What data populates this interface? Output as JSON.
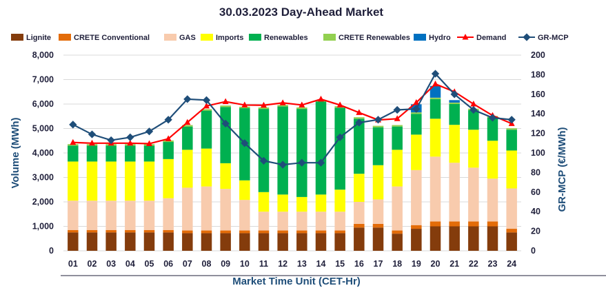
{
  "chart_data": {
    "type": "bar",
    "title": "30.03.2023  Day-Ahead Market",
    "xlabel": "Market Time Unit (CET-Hr)",
    "ylabel": "Volume (MWh)",
    "y2label": "GR-MCP (€/MWh)",
    "ylim": [
      0,
      8000
    ],
    "y2lim": [
      0,
      200
    ],
    "yticks": [
      "0",
      "1,000",
      "2,000",
      "3,000",
      "4,000",
      "5,000",
      "6,000",
      "7,000",
      "8,000"
    ],
    "y2ticks": [
      "0",
      "20",
      "40",
      "60",
      "80",
      "100",
      "120",
      "140",
      "160",
      "180",
      "200"
    ],
    "categories": [
      "01",
      "02",
      "03",
      "04",
      "05",
      "06",
      "07",
      "08",
      "09",
      "10",
      "11",
      "12",
      "13",
      "14",
      "15",
      "16",
      "17",
      "18",
      "19",
      "20",
      "21",
      "22",
      "23",
      "24"
    ],
    "series": [
      {
        "name": "Lignite",
        "kind": "bar",
        "color": "#843c0c",
        "values": [
          750,
          750,
          750,
          750,
          750,
          750,
          720,
          720,
          720,
          720,
          720,
          720,
          720,
          720,
          720,
          950,
          950,
          700,
          900,
          1000,
          1000,
          1000,
          1000,
          750
        ]
      },
      {
        "name": "CRETE Conventional",
        "kind": "bar",
        "color": "#e36c09",
        "values": [
          100,
          100,
          100,
          100,
          100,
          100,
          110,
          110,
          110,
          110,
          110,
          110,
          110,
          110,
          110,
          150,
          150,
          130,
          150,
          200,
          200,
          200,
          200,
          150
        ]
      },
      {
        "name": "GAS",
        "kind": "bar",
        "color": "#f8cbad",
        "values": [
          1200,
          1200,
          1200,
          1200,
          1200,
          1300,
          1750,
          1800,
          1700,
          1250,
          770,
          770,
          770,
          770,
          770,
          900,
          1000,
          1800,
          2250,
          2650,
          2400,
          2200,
          1750,
          1650
        ]
      },
      {
        "name": "Imports",
        "kind": "bar",
        "color": "#ffff00",
        "values": [
          1600,
          1600,
          1600,
          1600,
          1600,
          1600,
          1550,
          1550,
          1050,
          800,
          800,
          700,
          600,
          700,
          900,
          1150,
          1400,
          1500,
          1450,
          1550,
          1550,
          1550,
          1550,
          1550
        ]
      },
      {
        "name": "Renewables",
        "kind": "bar",
        "color": "#00b050",
        "values": [
          650,
          650,
          650,
          650,
          650,
          700,
          950,
          1550,
          2300,
          2950,
          3400,
          3600,
          3600,
          3800,
          3350,
          2250,
          1550,
          950,
          850,
          800,
          850,
          800,
          950,
          850
        ]
      },
      {
        "name": "CRETE Renewables",
        "kind": "bar",
        "color": "#92d050",
        "values": [
          60,
          60,
          60,
          60,
          60,
          60,
          60,
          60,
          60,
          60,
          60,
          60,
          60,
          60,
          60,
          60,
          60,
          60,
          60,
          60,
          60,
          60,
          60,
          60
        ]
      },
      {
        "name": "Hydro",
        "kind": "bar",
        "color": "#0070c0",
        "values": [
          0,
          0,
          0,
          0,
          0,
          0,
          0,
          0,
          0,
          0,
          0,
          0,
          0,
          0,
          0,
          0,
          0,
          0,
          330,
          480,
          100,
          0,
          0,
          0
        ]
      },
      {
        "name": "Demand",
        "kind": "line-left",
        "color": "#ff0000",
        "values": [
          4430,
          4400,
          4400,
          4400,
          4380,
          4580,
          5250,
          5920,
          6100,
          5960,
          5950,
          6050,
          5960,
          6200,
          5960,
          5650,
          5350,
          5400,
          6060,
          6820,
          6500,
          6000,
          5530,
          5200
        ]
      },
      {
        "name": "GR-MCP",
        "kind": "line-right",
        "color": "#1f4e79",
        "values": [
          129,
          119,
          113,
          116,
          122,
          134,
          155,
          154,
          130,
          110,
          92,
          88,
          90,
          90,
          116,
          131,
          134,
          144,
          145,
          181,
          160,
          144,
          136,
          134
        ]
      }
    ]
  }
}
